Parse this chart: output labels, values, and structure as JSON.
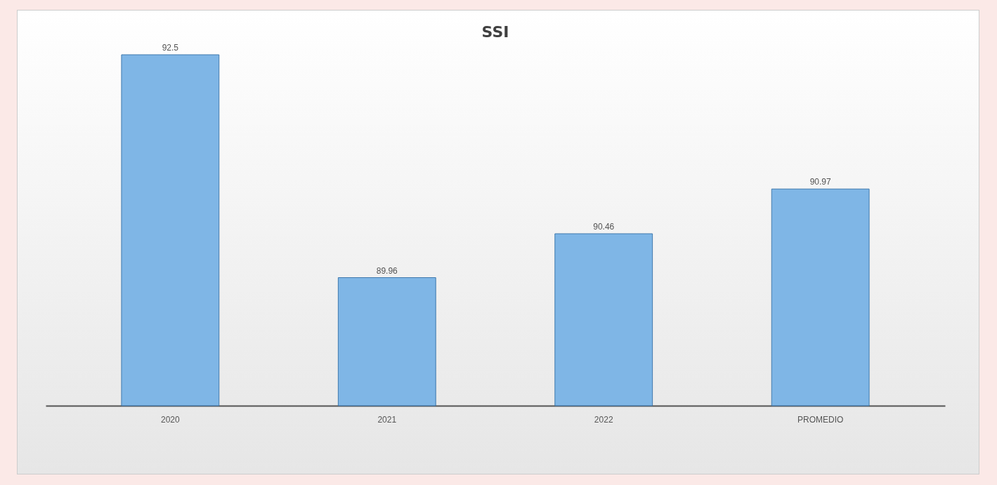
{
  "chart_data": {
    "type": "bar",
    "title": "SSI",
    "categories": [
      "2020",
      "2021",
      "2022",
      "PROMEDIO"
    ],
    "values": [
      92.5,
      89.96,
      90.46,
      90.97
    ],
    "color": "#7fb6e6",
    "ylim": [
      88.5,
      92.5
    ],
    "data_labels": true,
    "grid": false
  }
}
